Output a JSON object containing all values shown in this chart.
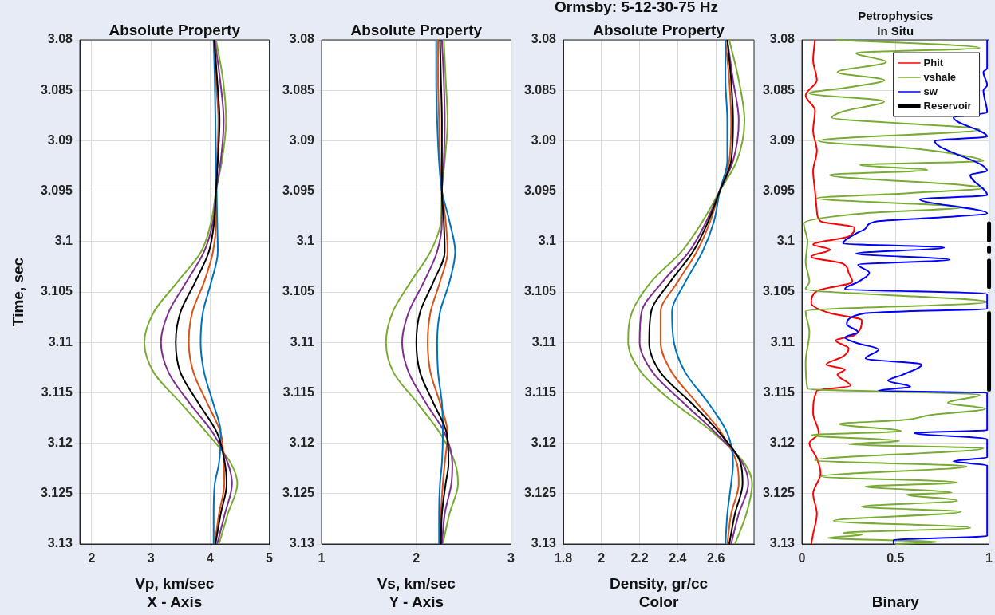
{
  "chart_data": [
    {
      "type": "line",
      "title": "Absolute Property",
      "xlabel": "Vp, km/sec\nX - Axis",
      "ylabel": "Time, sec",
      "xlim": [
        1.8,
        5
      ],
      "xticks": [
        2,
        3,
        4,
        5
      ],
      "ylim": [
        3.13,
        3.08
      ],
      "yticks": [
        3.08,
        3.085,
        3.09,
        3.095,
        3.1,
        3.105,
        3.11,
        3.115,
        3.12,
        3.125,
        3.13
      ],
      "grid": true,
      "legend": false,
      "series": [
        {
          "color": "#77ac30",
          "x": [
            4.1,
            4.22,
            4.27,
            4.2,
            4.1,
            4.02,
            3.85,
            3.45,
            3.05,
            2.89,
            3.05,
            3.5,
            3.95,
            4.35,
            4.46,
            4.3,
            4.15
          ],
          "values": [
            3.08,
            3.084,
            3.088,
            3.092,
            3.095,
            3.098,
            3.101,
            3.104,
            3.107,
            3.11,
            3.113,
            3.116,
            3.119,
            3.122,
            3.124,
            3.127,
            3.13
          ]
        },
        {
          "color": "#7e2f8e",
          "x": [
            4.08,
            4.17,
            4.23,
            4.18,
            4.1,
            4.05,
            3.9,
            3.6,
            3.3,
            3.17,
            3.3,
            3.65,
            4.05,
            4.3,
            4.37,
            4.25,
            4.12
          ],
          "values": [
            3.08,
            3.084,
            3.088,
            3.092,
            3.095,
            3.098,
            3.101,
            3.104,
            3.107,
            3.11,
            3.113,
            3.116,
            3.119,
            3.122,
            3.124,
            3.127,
            3.13
          ]
        },
        {
          "color": "#d95319",
          "x": [
            4.07,
            4.1,
            4.14,
            4.12,
            4.1,
            4.1,
            4.05,
            3.9,
            3.7,
            3.64,
            3.72,
            3.95,
            4.18,
            4.23,
            4.24,
            4.15,
            4.08
          ],
          "values": [
            3.08,
            3.084,
            3.088,
            3.092,
            3.095,
            3.098,
            3.101,
            3.104,
            3.107,
            3.11,
            3.113,
            3.116,
            3.119,
            3.122,
            3.124,
            3.127,
            3.13
          ]
        },
        {
          "color": "#0072bd",
          "x": [
            4.06,
            4.08,
            4.09,
            4.1,
            4.11,
            4.12,
            4.13,
            4.02,
            3.88,
            3.84,
            3.9,
            4.05,
            4.18,
            4.15,
            4.08,
            4.06,
            4.06
          ],
          "values": [
            3.08,
            3.084,
            3.088,
            3.092,
            3.095,
            3.098,
            3.101,
            3.104,
            3.107,
            3.11,
            3.113,
            3.116,
            3.119,
            3.122,
            3.124,
            3.127,
            3.13
          ]
        },
        {
          "color": "#000000",
          "x": [
            4.07,
            4.12,
            4.16,
            4.13,
            4.1,
            4.07,
            3.98,
            3.75,
            3.5,
            3.42,
            3.5,
            3.8,
            4.12,
            4.25,
            4.28,
            4.18,
            4.09
          ],
          "values": [
            3.08,
            3.084,
            3.088,
            3.092,
            3.095,
            3.098,
            3.101,
            3.104,
            3.107,
            3.11,
            3.113,
            3.116,
            3.119,
            3.122,
            3.124,
            3.127,
            3.13
          ]
        }
      ]
    },
    {
      "type": "line",
      "title": "Absolute Property",
      "xlabel": "Vs, km/sec\nY - Axis",
      "xlim": [
        1,
        3
      ],
      "xticks": [
        1,
        2,
        3
      ],
      "ylim": [
        3.13,
        3.08
      ],
      "yticks": [
        3.08,
        3.085,
        3.09,
        3.095,
        3.1,
        3.105,
        3.11,
        3.115,
        3.12,
        3.125,
        3.13
      ],
      "grid": true,
      "legend": false,
      "series": [
        {
          "color": "#77ac30",
          "x": [
            2.29,
            2.31,
            2.33,
            2.3,
            2.27,
            2.26,
            2.15,
            1.94,
            1.75,
            1.68,
            1.76,
            2.01,
            2.25,
            2.41,
            2.44,
            2.35,
            2.28
          ],
          "values": [
            3.08,
            3.084,
            3.088,
            3.092,
            3.095,
            3.098,
            3.101,
            3.104,
            3.107,
            3.11,
            3.113,
            3.116,
            3.119,
            3.122,
            3.124,
            3.127,
            3.13
          ]
        },
        {
          "color": "#7e2f8e",
          "x": [
            2.27,
            2.29,
            2.3,
            2.29,
            2.27,
            2.27,
            2.22,
            2.08,
            1.92,
            1.85,
            1.92,
            2.1,
            2.3,
            2.38,
            2.37,
            2.3,
            2.27
          ],
          "values": [
            3.08,
            3.084,
            3.088,
            3.092,
            3.095,
            3.098,
            3.101,
            3.104,
            3.107,
            3.11,
            3.113,
            3.116,
            3.119,
            3.122,
            3.124,
            3.127,
            3.13
          ]
        },
        {
          "color": "#d95319",
          "x": [
            2.23,
            2.23,
            2.24,
            2.25,
            2.27,
            2.31,
            2.33,
            2.25,
            2.15,
            2.12,
            2.15,
            2.25,
            2.33,
            2.3,
            2.28,
            2.26,
            2.25
          ],
          "values": [
            3.08,
            3.084,
            3.088,
            3.092,
            3.095,
            3.098,
            3.101,
            3.104,
            3.107,
            3.11,
            3.113,
            3.116,
            3.119,
            3.122,
            3.124,
            3.127,
            3.13
          ]
        },
        {
          "color": "#0072bd",
          "x": [
            2.21,
            2.21,
            2.22,
            2.24,
            2.27,
            2.35,
            2.41,
            2.35,
            2.25,
            2.22,
            2.23,
            2.27,
            2.28,
            2.27,
            2.25,
            2.24,
            2.24
          ],
          "values": [
            3.08,
            3.084,
            3.088,
            3.092,
            3.095,
            3.098,
            3.101,
            3.104,
            3.107,
            3.11,
            3.113,
            3.116,
            3.119,
            3.122,
            3.124,
            3.127,
            3.13
          ]
        },
        {
          "color": "#000000",
          "x": [
            2.25,
            2.26,
            2.27,
            2.27,
            2.27,
            2.29,
            2.3,
            2.18,
            2.04,
            2.0,
            2.04,
            2.18,
            2.32,
            2.34,
            2.31,
            2.27,
            2.26
          ],
          "values": [
            3.08,
            3.084,
            3.088,
            3.092,
            3.095,
            3.098,
            3.101,
            3.104,
            3.107,
            3.11,
            3.113,
            3.116,
            3.119,
            3.122,
            3.124,
            3.127,
            3.13
          ]
        }
      ]
    },
    {
      "type": "line",
      "title": "Absolute Property",
      "xlabel": "Density, gr/cc\nColor",
      "annotations": [
        "Ormsby: 5-12-30-75 Hz"
      ],
      "xlim": [
        1.8,
        2.8
      ],
      "xticks": [
        1.8,
        2,
        2.2,
        2.4,
        2.6
      ],
      "ylim": [
        3.13,
        3.08
      ],
      "yticks": [
        3.08,
        3.085,
        3.09,
        3.095,
        3.1,
        3.105,
        3.11,
        3.115,
        3.12,
        3.125,
        3.13
      ],
      "grid": true,
      "legend": false,
      "series": [
        {
          "color": "#77ac30",
          "x": [
            2.67,
            2.72,
            2.75,
            2.71,
            2.62,
            2.53,
            2.42,
            2.26,
            2.16,
            2.14,
            2.21,
            2.38,
            2.59,
            2.75,
            2.79,
            2.76,
            2.7
          ],
          "values": [
            3.08,
            3.084,
            3.088,
            3.092,
            3.095,
            3.098,
            3.101,
            3.104,
            3.107,
            3.11,
            3.113,
            3.116,
            3.119,
            3.122,
            3.124,
            3.127,
            3.13
          ]
        },
        {
          "color": "#7e2f8e",
          "x": [
            2.66,
            2.69,
            2.72,
            2.69,
            2.62,
            2.55,
            2.46,
            2.32,
            2.21,
            2.2,
            2.27,
            2.43,
            2.6,
            2.74,
            2.77,
            2.72,
            2.68
          ],
          "values": [
            3.08,
            3.084,
            3.088,
            3.092,
            3.095,
            3.098,
            3.101,
            3.104,
            3.107,
            3.11,
            3.113,
            3.116,
            3.119,
            3.122,
            3.124,
            3.127,
            3.13
          ]
        },
        {
          "color": "#d95319",
          "x": [
            2.65,
            2.67,
            2.68,
            2.67,
            2.62,
            2.57,
            2.5,
            2.4,
            2.31,
            2.31,
            2.37,
            2.5,
            2.63,
            2.71,
            2.72,
            2.68,
            2.66
          ],
          "values": [
            3.08,
            3.084,
            3.088,
            3.092,
            3.095,
            3.098,
            3.101,
            3.104,
            3.107,
            3.11,
            3.113,
            3.116,
            3.119,
            3.122,
            3.124,
            3.127,
            3.13
          ]
        },
        {
          "color": "#0072bd",
          "x": [
            2.65,
            2.65,
            2.66,
            2.66,
            2.62,
            2.59,
            2.53,
            2.44,
            2.37,
            2.38,
            2.44,
            2.56,
            2.66,
            2.69,
            2.68,
            2.66,
            2.65
          ],
          "values": [
            3.08,
            3.084,
            3.088,
            3.092,
            3.095,
            3.098,
            3.101,
            3.104,
            3.107,
            3.11,
            3.113,
            3.116,
            3.119,
            3.122,
            3.124,
            3.127,
            3.13
          ]
        },
        {
          "color": "#000000",
          "x": [
            2.66,
            2.68,
            2.69,
            2.68,
            2.62,
            2.56,
            2.48,
            2.36,
            2.26,
            2.25,
            2.31,
            2.47,
            2.62,
            2.73,
            2.74,
            2.7,
            2.67
          ],
          "values": [
            3.08,
            3.084,
            3.088,
            3.092,
            3.095,
            3.098,
            3.101,
            3.104,
            3.107,
            3.11,
            3.113,
            3.116,
            3.119,
            3.122,
            3.124,
            3.127,
            3.13
          ]
        }
      ]
    },
    {
      "type": "line",
      "title": "Petrophysics\nIn Situ",
      "xlabel": "Binary",
      "xlim": [
        0,
        1
      ],
      "xticks": [
        0,
        0.5,
        1
      ],
      "ylim": [
        3.13,
        3.08
      ],
      "yticks": [
        3.08,
        3.085,
        3.09,
        3.095,
        3.1,
        3.105,
        3.11,
        3.115,
        3.12,
        3.125,
        3.13
      ],
      "grid": true,
      "legend": "top right",
      "series": [
        {
          "name": "Phit",
          "color": "#ff0000",
          "x": [
            0.07,
            0.06,
            0.08,
            0.02,
            0.07,
            0.06,
            0.08,
            0.06,
            0.07,
            0.08,
            0.1,
            0.28,
            0.25,
            0.06,
            0.15,
            0.05,
            0.22,
            0.25,
            0.27,
            0.08,
            0.05,
            0.15,
            0.32,
            0.28,
            0.18,
            0.25,
            0.22,
            0.13,
            0.23,
            0.19,
            0.26,
            0.08,
            0.06,
            0.09,
            0.04,
            0.08,
            0.1,
            0.06,
            0.08,
            0.06,
            0.05
          ],
          "values": [
            3.08,
            3.082,
            3.084,
            3.0855,
            3.087,
            3.089,
            3.091,
            3.093,
            3.095,
            3.097,
            3.098,
            3.0986,
            3.0995,
            3.1003,
            3.1008,
            3.1015,
            3.1022,
            3.1031,
            3.104,
            3.1049,
            3.1061,
            3.1071,
            3.1078,
            3.1093,
            3.1098,
            3.1106,
            3.1114,
            3.1122,
            3.1127,
            3.1132,
            3.1143,
            3.1148,
            3.117,
            3.119,
            3.12,
            3.1215,
            3.123,
            3.125,
            3.127,
            3.129,
            3.13
          ]
        },
        {
          "name": "vshale",
          "color": "#77ac30",
          "x": [
            0.18,
            0.95,
            0.29,
            0.45,
            0.19,
            0.44,
            0.25,
            0.04,
            0.44,
            0.22,
            0.16,
            0.95,
            0.09,
            0.61,
            0.9,
            0.97,
            0.31,
            0.67,
            0.15,
            0.86,
            0.97,
            0.57,
            0.08,
            0.86,
            0.33,
            0.01,
            0.03,
            0.02,
            0.04,
            0.02,
            0.99,
            0.02,
            0.04,
            0.02,
            0.03,
            0.95,
            0.78,
            0.98,
            0.69,
            0.54,
            0.2,
            0.53,
            0.05,
            0.52,
            0.25,
            0.97,
            0.07,
            0.88,
            0.1,
            0.83,
            0.34,
            0.8,
            0.56,
            0.83,
            0.32,
            0.85,
            0.17,
            0.9,
            0.22,
            0.32,
            0.14,
            0.72,
            0.5
          ],
          "values": [
            3.08,
            3.0808,
            3.0813,
            3.0822,
            3.0832,
            3.084,
            3.0847,
            3.0853,
            3.0861,
            3.0871,
            3.0877,
            3.0889,
            3.09,
            3.0908,
            3.0916,
            3.092,
            3.0924,
            3.0929,
            3.0934,
            3.0944,
            3.0947,
            3.0952,
            3.0957,
            3.0966,
            3.0972,
            3.0982,
            3.1,
            3.102,
            3.104,
            3.1047,
            3.106,
            3.1069,
            3.109,
            3.112,
            3.1146,
            3.1152,
            3.116,
            3.1166,
            3.1172,
            3.1177,
            3.1181,
            3.1188,
            3.1192,
            3.1198,
            3.1201,
            3.1205,
            3.1217,
            3.1223,
            3.1233,
            3.1239,
            3.1243,
            3.1249,
            3.1251,
            3.1257,
            3.1263,
            3.1268,
            3.1277,
            3.1284,
            3.1289,
            3.1291,
            3.1294,
            3.1298,
            3.13
          ]
        },
        {
          "name": "sw",
          "color": "#0000ff",
          "x": [
            0.99,
            0.99,
            0.97,
            0.99,
            0.97,
            0.99,
            0.81,
            0.99,
            0.71,
            0.99,
            0.9,
            0.99,
            0.63,
            0.99,
            0.74,
            0.4,
            0.34,
            0.29,
            0.22,
            0.76,
            0.29,
            0.79,
            0.3,
            0.36,
            0.3,
            0.23,
            0.99,
            0.99,
            0.58,
            0.34,
            0.24,
            0.3,
            0.23,
            0.3,
            0.41,
            0.34,
            0.64,
            0.54,
            0.46,
            0.58,
            0.41,
            0.99,
            0.99,
            0.6,
            0.99,
            0.99,
            0.81,
            0.99,
            0.99,
            0.49,
            0.49
          ],
          "values": [
            3.08,
            3.0828,
            3.0832,
            3.0845,
            3.085,
            3.0872,
            3.0877,
            3.0896,
            3.09,
            3.093,
            3.0934,
            3.0954,
            3.0958,
            3.0972,
            3.0976,
            3.098,
            3.0987,
            3.0992,
            3.1002,
            3.1006,
            3.1012,
            3.1018,
            3.1023,
            3.1031,
            3.104,
            3.1047,
            3.1052,
            3.1067,
            3.1069,
            3.1071,
            3.1082,
            3.109,
            3.1095,
            3.1101,
            3.1107,
            3.1116,
            3.1122,
            3.1132,
            3.1138,
            3.1144,
            3.1148,
            3.115,
            3.1187,
            3.119,
            3.1196,
            3.1214,
            3.1218,
            3.1222,
            3.1292,
            3.1296,
            3.13
          ]
        },
        {
          "name": "Reservoir",
          "color": "#000000",
          "x": [
            1,
            1,
            null,
            1,
            1,
            null,
            1,
            1,
            null,
            1,
            1,
            null,
            1,
            1
          ],
          "values": [
            3.0982,
            3.0999,
            null,
            3.1006,
            3.101,
            null,
            3.1019,
            3.1045,
            null,
            3.1071,
            3.1122,
            null,
            3.1123,
            3.1147
          ]
        }
      ]
    }
  ]
}
